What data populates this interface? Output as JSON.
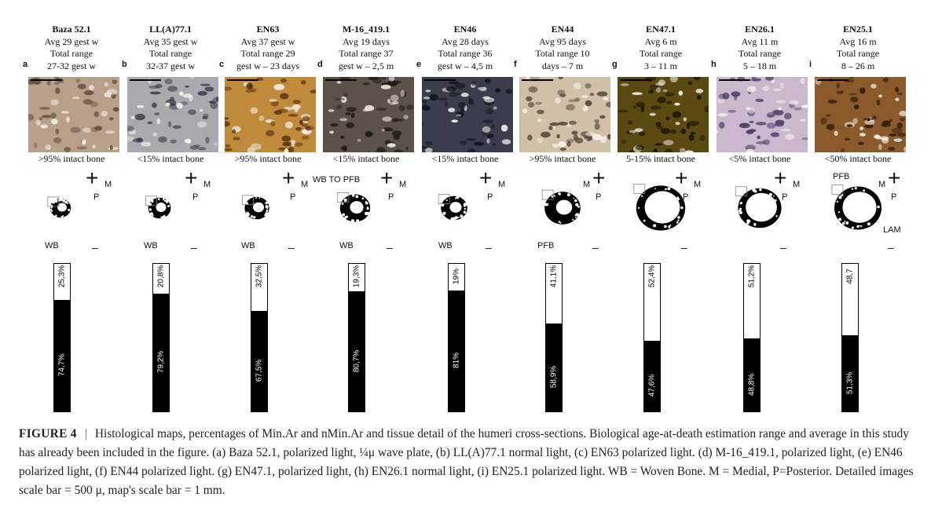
{
  "panels": [
    {
      "letter": "a",
      "name": "Baza 52.1",
      "lines": [
        "Avg 29 gest w",
        "Total range",
        "27-32 gest w"
      ],
      "intact": ">95% intact bone",
      "tissue": "WB",
      "top_pct": "25,3%",
      "bottom_pct": "74,7%",
      "top_frac": 0.253,
      "photo_color": "#b8a08a",
      "photo_dark": "#6b5240",
      "map_size": 0.55
    },
    {
      "letter": "b",
      "name": "LL(A)77.1",
      "lines": [
        "Avg 35 gest w",
        "Total range",
        "32-37 gest w"
      ],
      "intact": "<15% intact bone",
      "tissue": "WB",
      "top_pct": "20,8%",
      "bottom_pct": "79,2%",
      "top_frac": 0.208,
      "photo_color": "#a8aab0",
      "photo_dark": "#3b3b48",
      "map_size": 0.6
    },
    {
      "letter": "c",
      "name": "EN63",
      "lines": [
        "Avg 37 gest w",
        "Total range 29",
        "gest w – 23 days"
      ],
      "intact": ">95% intact bone",
      "tissue": "WB",
      "top_pct": "32,5%",
      "bottom_pct": "67,5%",
      "top_frac": 0.325,
      "photo_color": "#c08a3c",
      "photo_dark": "#5a3210",
      "map_size": 0.65
    },
    {
      "letter": "d",
      "name": "M-16_419.1",
      "lines": [
        "Avg 19 days",
        "Total range 37",
        "gest w – 2,5 m"
      ],
      "intact": "<15% intact bone",
      "tissue": "WB",
      "tissue_top": "WB TO PFB",
      "top_pct": "19,3%",
      "bottom_pct": "80,7%",
      "top_frac": 0.193,
      "photo_color": "#5c5248",
      "photo_dark": "#1e1a16",
      "map_size": 0.8
    },
    {
      "letter": "e",
      "name": "EN46",
      "lines": [
        "Avg 28 days",
        "Total range 36",
        "gest w – 4,5 m"
      ],
      "intact": "<15% intact bone",
      "tissue": "WB",
      "top_pct": "19%",
      "bottom_pct": "81%",
      "top_frac": 0.19,
      "photo_color": "#3a3e4c",
      "photo_dark": "#14161e",
      "map_size": 0.7
    },
    {
      "letter": "f",
      "name": "EN44",
      "lines": [
        "Avg 95 days",
        "Total range 10",
        "days – 7 m"
      ],
      "intact": ">95% intact bone",
      "tissue": "PFB",
      "top_pct": "41,1%",
      "bottom_pct": "58,9%",
      "top_frac": 0.411,
      "photo_color": "#d0c0a8",
      "photo_dark": "#5a4a3a",
      "map_size": 0.95
    },
    {
      "letter": "g",
      "name": "EN47.1",
      "lines": [
        "Avg 6 m",
        "Total range",
        "3 – 11 m"
      ],
      "intact": "5-15% intact bone",
      "tissue": "",
      "top_pct": "52,4%",
      "bottom_pct": "47,6%",
      "top_frac": 0.524,
      "photo_color": "#5a4a12",
      "photo_dark": "#1a1404",
      "map_size": 1.3
    },
    {
      "letter": "h",
      "name": "EN26.1",
      "lines": [
        "Avg 11 m",
        "Total range",
        "5 – 18 m"
      ],
      "intact": "<5% intact bone",
      "tissue": "",
      "top_pct": "51,2%",
      "bottom_pct": "48,8%",
      "top_frac": 0.512,
      "photo_color": "#cab8cc",
      "photo_dark": "#50406a",
      "map_size": 1.15
    },
    {
      "letter": "i",
      "name": "EN25.1",
      "lines": [
        "Avg 16 m",
        "Total range",
        "8 – 26 m"
      ],
      "intact": "<50% intact bone",
      "tissue": "PFB",
      "tissue_pos": "top",
      "lam": "LAM",
      "top_pct": "48,7",
      "bottom_pct": "51,3%",
      "top_frac": 0.487,
      "photo_color": "#8a5a2a",
      "photo_dark": "#2e1a08",
      "map_size": 1.25
    }
  ],
  "axes": {
    "medial": "M",
    "posterior": "P",
    "cross": "+",
    "minus": "–"
  },
  "caption": {
    "label": "FIGURE 4",
    "separator": "|",
    "text": "Histological maps, percentages of Min.Ar and nMin.Ar and tissue detail of the humeri cross-sections. Biological age-at-death estimation range and average in this study has already been included in the figure. (a) Baza 52.1, polarized light, ¼μ wave plate, (b) LL(A)77.1 normal light, (c) EN63 polarized light. (d) M-16_419.1, polarized light, (e) EN46 polarized light, (f) EN44 polarized light. (g) EN47.1, polarized light, (h) EN26.1 normal light, (i) EN25.1 polarized light. WB = Woven Bone. M = Medial, P=Posterior. Detailed images scale bar = 500 μ, map's scale bar = 1 mm."
  }
}
